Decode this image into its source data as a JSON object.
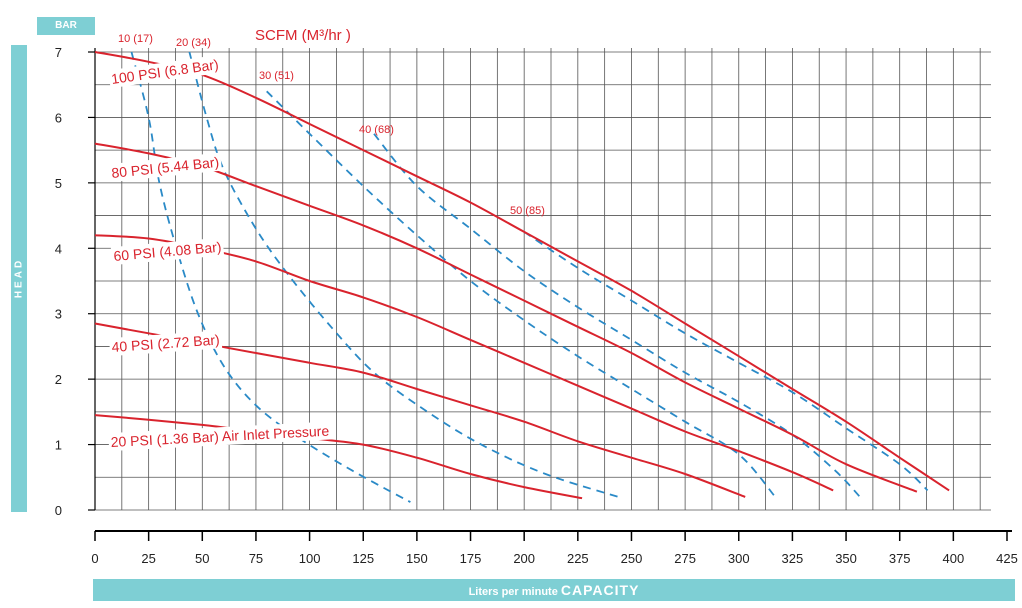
{
  "colors": {
    "accent": "#7ecfd4",
    "curve": "#d9232d",
    "grid": "#555555"
  },
  "labels": {
    "bar_unit": "BAR",
    "head": "HEAD",
    "capacity_prefix": "Liters per minute",
    "capacity_strong": "CAPACITY",
    "scfm_title": "SCFM (M³/hr )"
  },
  "chart_data": {
    "type": "line",
    "x_axis": {
      "min": 0,
      "max": 425,
      "ticks": [
        0,
        25,
        50,
        75,
        100,
        125,
        150,
        175,
        200,
        225,
        250,
        275,
        300,
        325,
        350,
        375,
        400,
        425
      ],
      "title": "Liters per minute CAPACITY"
    },
    "y_axis": {
      "min": 0,
      "max": 7,
      "ticks": [
        0,
        1,
        2,
        3,
        4,
        5,
        6,
        7
      ],
      "title": "HEAD",
      "unit": "BAR"
    },
    "grid": true,
    "pressure_curves": [
      {
        "name": "100 PSI (6.8 Bar)",
        "points": [
          [
            0,
            7.0
          ],
          [
            25,
            6.85
          ],
          [
            50,
            6.65
          ],
          [
            75,
            6.3
          ],
          [
            100,
            5.9
          ],
          [
            125,
            5.5
          ],
          [
            150,
            5.1
          ],
          [
            175,
            4.7
          ],
          [
            200,
            4.25
          ],
          [
            225,
            3.8
          ],
          [
            250,
            3.35
          ],
          [
            275,
            2.85
          ],
          [
            300,
            2.35
          ],
          [
            325,
            1.85
          ],
          [
            350,
            1.35
          ],
          [
            375,
            0.8
          ],
          [
            398,
            0.3
          ]
        ]
      },
      {
        "name": "80 PSI (5.44 Bar)",
        "points": [
          [
            0,
            5.6
          ],
          [
            25,
            5.45
          ],
          [
            50,
            5.25
          ],
          [
            75,
            4.95
          ],
          [
            100,
            4.65
          ],
          [
            125,
            4.35
          ],
          [
            150,
            4.0
          ],
          [
            175,
            3.6
          ],
          [
            200,
            3.2
          ],
          [
            225,
            2.8
          ],
          [
            250,
            2.4
          ],
          [
            275,
            1.95
          ],
          [
            300,
            1.55
          ],
          [
            325,
            1.15
          ],
          [
            350,
            0.7
          ],
          [
            383,
            0.28
          ]
        ]
      },
      {
        "name": "60 PSI (4.08 Bar)",
        "points": [
          [
            0,
            4.2
          ],
          [
            25,
            4.15
          ],
          [
            50,
            4.0
          ],
          [
            75,
            3.8
          ],
          [
            100,
            3.5
          ],
          [
            125,
            3.25
          ],
          [
            150,
            2.95
          ],
          [
            175,
            2.6
          ],
          [
            200,
            2.25
          ],
          [
            225,
            1.9
          ],
          [
            250,
            1.55
          ],
          [
            275,
            1.2
          ],
          [
            300,
            0.9
          ],
          [
            325,
            0.58
          ],
          [
            344,
            0.3
          ]
        ]
      },
      {
        "name": "40 PSI (2.72 Bar)",
        "points": [
          [
            0,
            2.85
          ],
          [
            25,
            2.7
          ],
          [
            50,
            2.55
          ],
          [
            75,
            2.4
          ],
          [
            100,
            2.25
          ],
          [
            125,
            2.1
          ],
          [
            150,
            1.85
          ],
          [
            175,
            1.6
          ],
          [
            200,
            1.35
          ],
          [
            225,
            1.05
          ],
          [
            250,
            0.8
          ],
          [
            275,
            0.55
          ],
          [
            303,
            0.2
          ]
        ]
      },
      {
        "name": "20 PSI (1.36 Bar) Air Inlet Pressure",
        "points": [
          [
            0,
            1.45
          ],
          [
            25,
            1.38
          ],
          [
            50,
            1.3
          ],
          [
            75,
            1.2
          ],
          [
            100,
            1.1
          ],
          [
            125,
            1.0
          ],
          [
            150,
            0.8
          ],
          [
            175,
            0.55
          ],
          [
            200,
            0.35
          ],
          [
            227,
            0.18
          ]
        ]
      }
    ],
    "air_consumption_curves": [
      {
        "name": "10 (17)",
        "points": [
          [
            17,
            7.0
          ],
          [
            25,
            6.0
          ],
          [
            30,
            5.0
          ],
          [
            38,
            4.0
          ],
          [
            48,
            3.0
          ],
          [
            60,
            2.2
          ],
          [
            75,
            1.6
          ],
          [
            95,
            1.1
          ],
          [
            120,
            0.6
          ],
          [
            147,
            0.12
          ]
        ]
      },
      {
        "name": "20 (34)",
        "points": [
          [
            44,
            7.0
          ],
          [
            52,
            6.0
          ],
          [
            60,
            5.2
          ],
          [
            75,
            4.3
          ],
          [
            90,
            3.6
          ],
          [
            110,
            2.8
          ],
          [
            130,
            2.1
          ],
          [
            155,
            1.5
          ],
          [
            180,
            1.0
          ],
          [
            210,
            0.55
          ],
          [
            246,
            0.18
          ]
        ]
      },
      {
        "name": "30 (51)",
        "points": [
          [
            80,
            6.4
          ],
          [
            100,
            5.75
          ],
          [
            125,
            4.95
          ],
          [
            150,
            4.2
          ],
          [
            175,
            3.5
          ],
          [
            200,
            2.9
          ],
          [
            225,
            2.35
          ],
          [
            250,
            1.85
          ],
          [
            275,
            1.35
          ],
          [
            300,
            0.85
          ],
          [
            317,
            0.2
          ]
        ]
      },
      {
        "name": "40 (68)",
        "points": [
          [
            130,
            5.75
          ],
          [
            150,
            4.95
          ],
          [
            175,
            4.3
          ],
          [
            200,
            3.65
          ],
          [
            225,
            3.1
          ],
          [
            250,
            2.6
          ],
          [
            275,
            2.1
          ],
          [
            300,
            1.65
          ],
          [
            325,
            1.15
          ],
          [
            345,
            0.6
          ],
          [
            357,
            0.18
          ]
        ]
      },
      {
        "name": "50 (85)",
        "points": [
          [
            200,
            4.25
          ],
          [
            225,
            3.7
          ],
          [
            250,
            3.2
          ],
          [
            275,
            2.7
          ],
          [
            300,
            2.25
          ],
          [
            325,
            1.8
          ],
          [
            350,
            1.25
          ],
          [
            375,
            0.7
          ],
          [
            388,
            0.3
          ]
        ]
      }
    ]
  }
}
